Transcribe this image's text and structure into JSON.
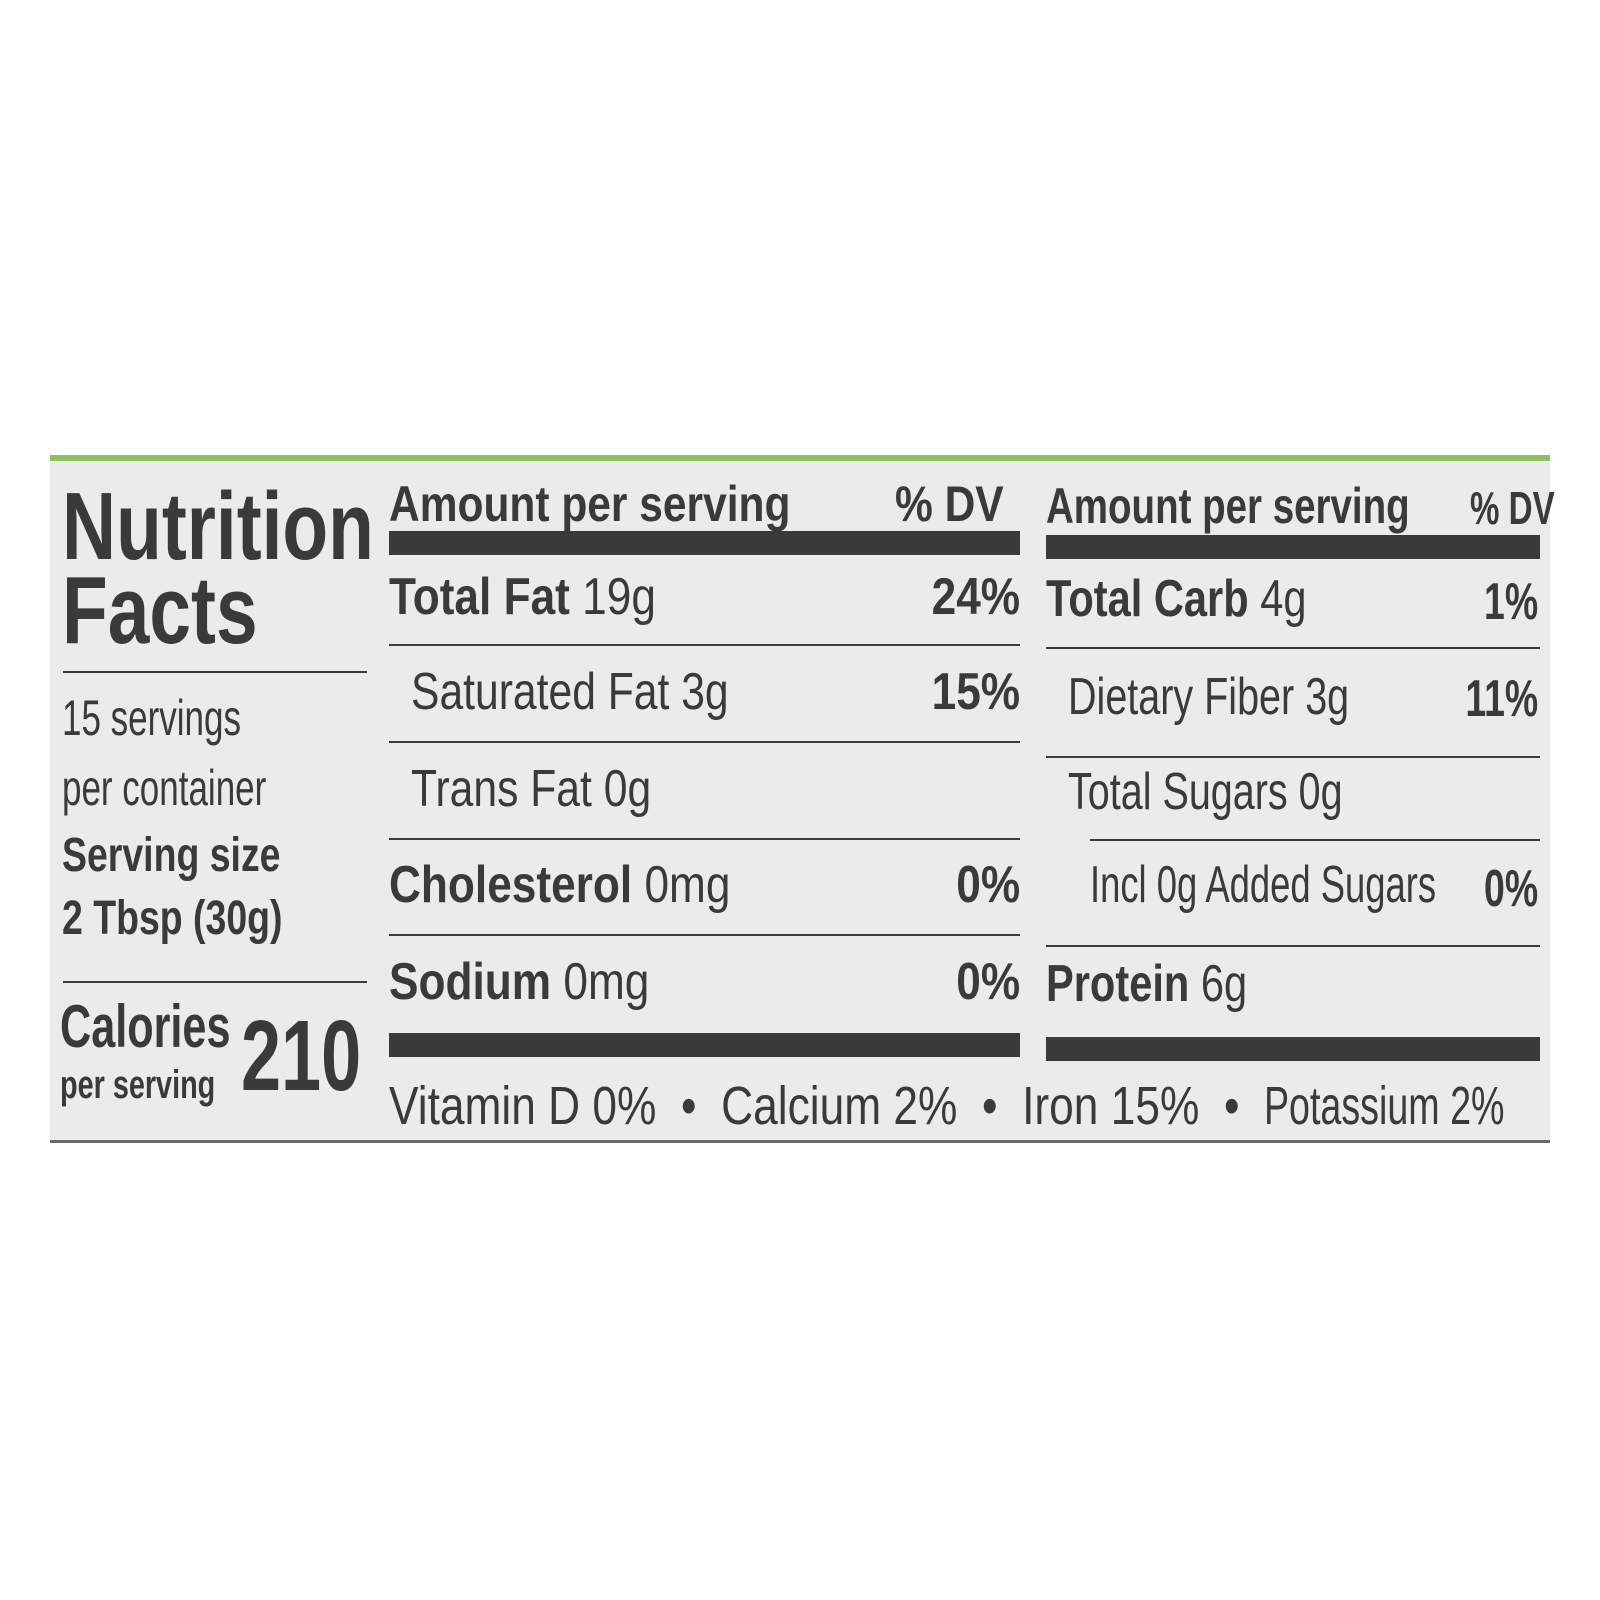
{
  "title": {
    "line1": "Nutrition",
    "line2": "Facts"
  },
  "servings": {
    "line1": "15 servings",
    "line2": "per container"
  },
  "serving_size": {
    "label": "Serving size",
    "value": "2 Tbsp (30g)"
  },
  "calories": {
    "label": "Calories",
    "sublabel": "per serving",
    "value": "210"
  },
  "headers": {
    "amount": "Amount per serving",
    "dv": "% DV"
  },
  "left_rows": [
    {
      "name": "Total Fat",
      "amount": "19g",
      "dv": "24%"
    },
    {
      "name": "Saturated Fat",
      "amount": "3g",
      "dv": "15%"
    },
    {
      "name": "Trans Fat",
      "amount": "0g",
      "dv": ""
    },
    {
      "name": "Cholesterol",
      "amount": "0mg",
      "dv": "0%"
    },
    {
      "name": "Sodium",
      "amount": "0mg",
      "dv": "0%"
    }
  ],
  "right_rows": [
    {
      "name": "Total Carb",
      "amount": "4g",
      "dv": "1%"
    },
    {
      "name": "Dietary Fiber",
      "amount": "3g",
      "dv": "11%"
    },
    {
      "name": "Total Sugars",
      "amount": "0g",
      "dv": ""
    },
    {
      "name": "Incl 0g Added Sugars",
      "amount": "",
      "dv": "0%"
    },
    {
      "name": "Protein",
      "amount": "6g",
      "dv": ""
    }
  ],
  "vitamins": [
    "Vitamin D 0%",
    "Calcium 2%",
    "Iron 15%",
    "Potassium 2%"
  ],
  "separator": "•",
  "colors": {
    "text": "#3b3a3a",
    "label_bg": "#ebebeb",
    "accent_green": "#8cc060"
  }
}
